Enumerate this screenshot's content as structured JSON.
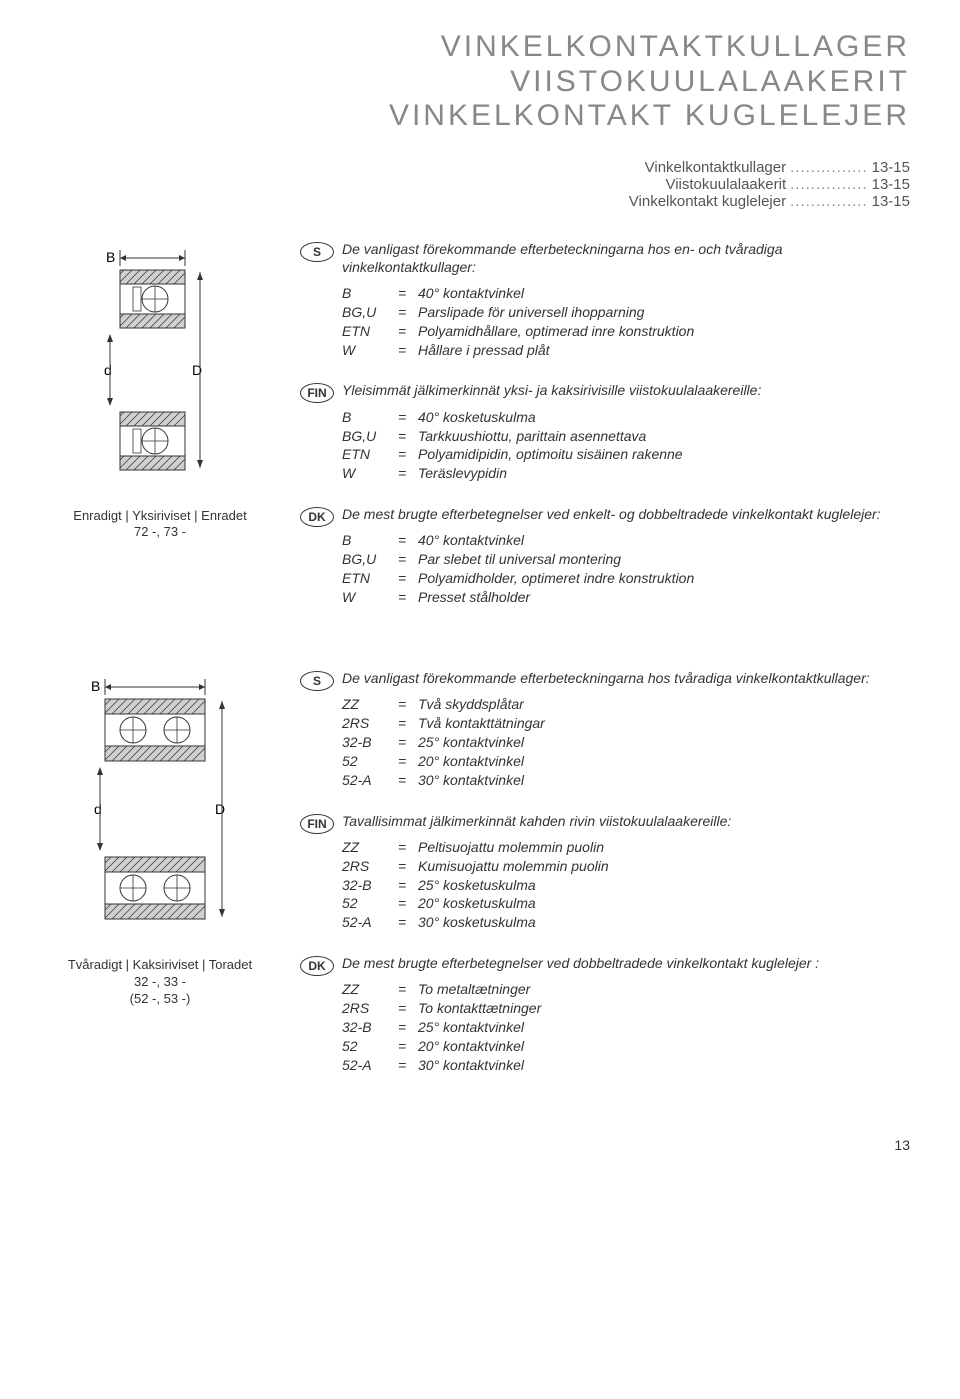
{
  "title": {
    "line1": "VINKELKONTAKTKULLAGER",
    "line2": "VIISTOKUULALAAKERIT",
    "line3": "VINKELKONTAKT KUGLELEJER"
  },
  "toc": [
    {
      "label": "Vinkelkontaktkullager",
      "page": "13-15"
    },
    {
      "label": "Viistokuulalaakerit",
      "page": "13-15"
    },
    {
      "label": "Vinkelkontakt kuglelejer",
      "page": "13-15"
    }
  ],
  "section1": {
    "caption_line1": "Enradigt | Yksiriviset | Enradet",
    "caption_line2": "72 -, 73 -",
    "S": {
      "intro": "De vanligast förekommande efterbeteckningarna hos en- och tvåradiga vinkelkontaktkullager:",
      "defs": [
        {
          "k": "B",
          "v": "40° kontaktvinkel"
        },
        {
          "k": "BG,U",
          "v": "Parslipade för universell ihopparning"
        },
        {
          "k": "ETN",
          "v": "Polyamidhållare, optimerad inre konstruktion"
        },
        {
          "k": "W",
          "v": "Hållare i pressad plåt"
        }
      ]
    },
    "FIN": {
      "intro": "Yleisimmät jälkimerkinnät yksi- ja kaksirivisille viistokuulalaakereille:",
      "defs": [
        {
          "k": "B",
          "v": "40° kosketuskulma"
        },
        {
          "k": "BG,U",
          "v": "Tarkkuushiottu, parittain asennettava"
        },
        {
          "k": "ETN",
          "v": "Polyamidipidin, optimoitu sisäinen rakenne"
        },
        {
          "k": "W",
          "v": "Teräslevypidin"
        }
      ]
    },
    "DK": {
      "intro": "De mest brugte efterbetegnelser ved enkelt- og dobbeltradede vinkelkontakt kuglelejer:",
      "defs": [
        {
          "k": "B",
          "v": "40° kontaktvinkel"
        },
        {
          "k": "BG,U",
          "v": "Par slebet til universal montering"
        },
        {
          "k": "ETN",
          "v": "Polyamidholder, optimeret indre konstruktion"
        },
        {
          "k": "W",
          "v": "Presset stålholder"
        }
      ]
    }
  },
  "section2": {
    "caption_line1": "Tvåradigt | Kaksiriviset | Toradet",
    "caption_line2": "32 -, 33 -",
    "caption_line3": "(52 -, 53 -)",
    "S": {
      "intro": "De vanligast förekommande efterbeteckningarna hos tvåradiga vinkelkontaktkullager:",
      "defs": [
        {
          "k": "ZZ",
          "v": "Två skyddsplåtar"
        },
        {
          "k": "2RS",
          "v": "Två kontakttätningar"
        },
        {
          "k": "32-B",
          "v": "25° kontaktvinkel"
        },
        {
          "k": "52",
          "v": "20° kontaktvinkel"
        },
        {
          "k": "52-A",
          "v": "30° kontaktvinkel"
        }
      ]
    },
    "FIN": {
      "intro": "Tavallisimmat jälkimerkinnät kahden rivin viistokuulalaakereille:",
      "defs": [
        {
          "k": "ZZ",
          "v": "Peltisuojattu molemmin puolin"
        },
        {
          "k": "2RS",
          "v": "Kumisuojattu molemmin puolin"
        },
        {
          "k": "32-B",
          "v": "25° kosketuskulma"
        },
        {
          "k": "52",
          "v": "20° kosketuskulma"
        },
        {
          "k": "52-A",
          "v": "30° kosketuskulma"
        }
      ]
    },
    "DK": {
      "intro": "De mest brugte efterbetegnelser ved dobbeltradede vinkelkontakt kuglelejer :",
      "defs": [
        {
          "k": "ZZ",
          "v": "To metaltætninger"
        },
        {
          "k": "2RS",
          "v": "To kontakttætninger"
        },
        {
          "k": "32-B",
          "v": "25° kontaktvinkel"
        },
        {
          "k": "52",
          "v": "20° kontaktvinkel"
        },
        {
          "k": "52-A",
          "v": "30° kontaktvinkel"
        }
      ]
    }
  },
  "page_number": "13",
  "diagram_labels": {
    "B": "B",
    "d": "d",
    "D": "D"
  },
  "colors": {
    "gray_fill": "#d0d0d0",
    "stroke": "#333"
  }
}
